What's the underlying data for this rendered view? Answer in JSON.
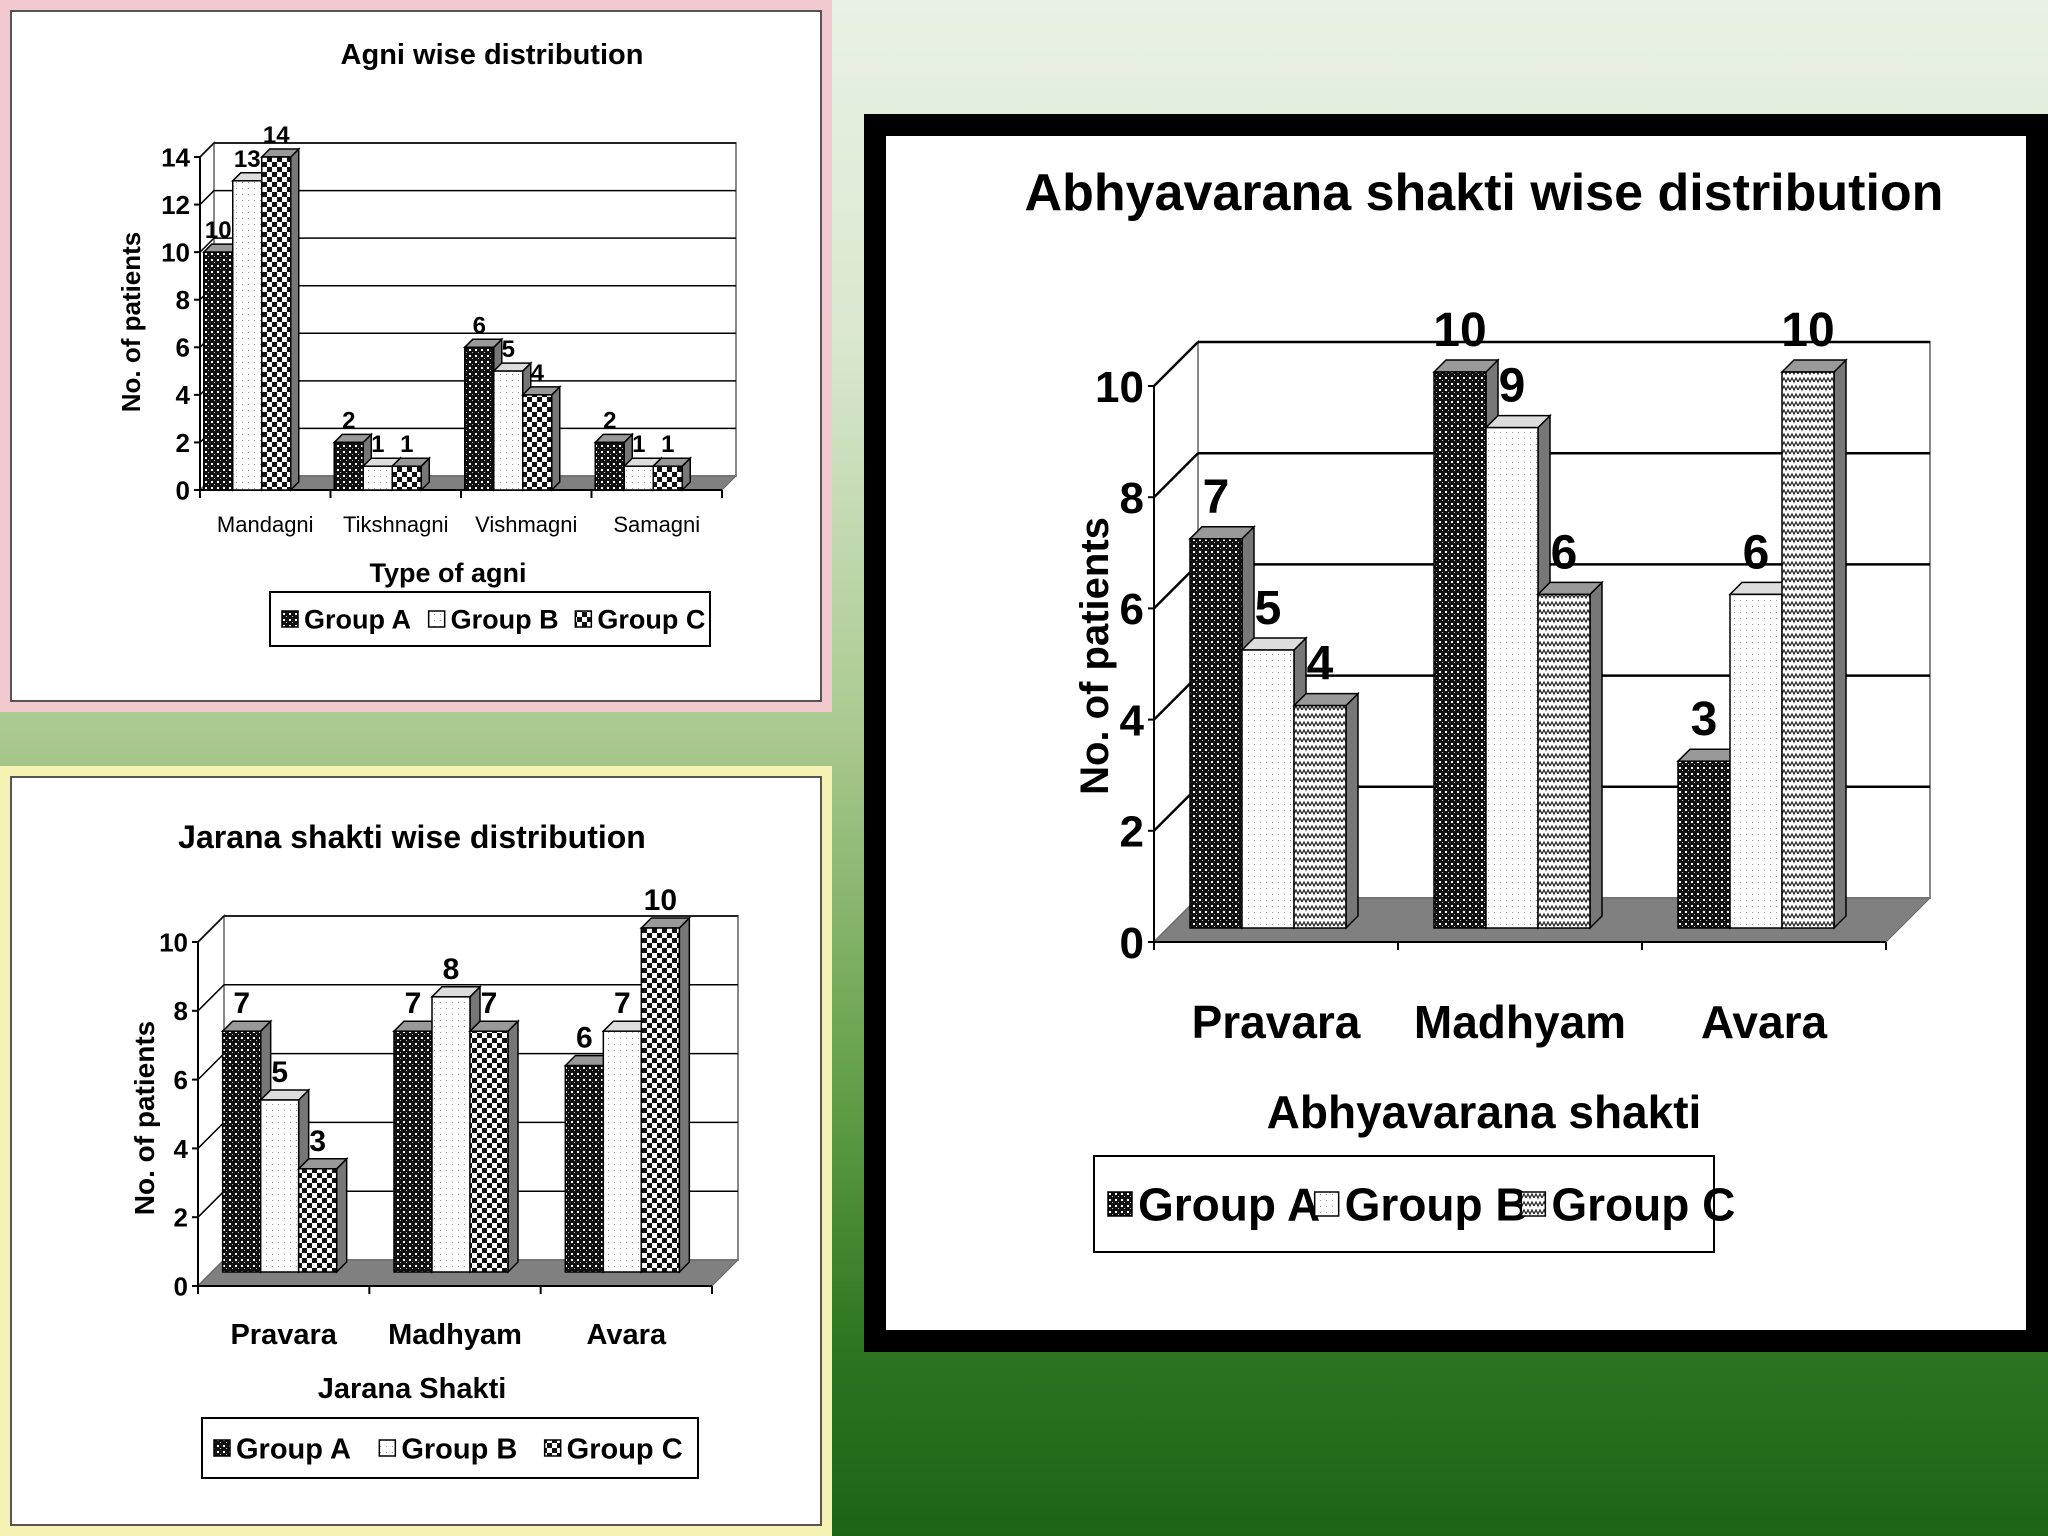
{
  "chart_data": [
    {
      "id": "agni",
      "type": "bar",
      "title": "Agni wise distribution",
      "xlabel": "Type of agni",
      "ylabel": "No. of patients",
      "categories": [
        "Mandagni",
        "Tikshnagni",
        "Vishmagni",
        "Samagni"
      ],
      "series": [
        {
          "name": "Group A",
          "values": [
            10,
            2,
            6,
            2
          ]
        },
        {
          "name": "Group B",
          "values": [
            13,
            1,
            5,
            1
          ]
        },
        {
          "name": "Group C",
          "values": [
            14,
            1,
            4,
            1
          ]
        }
      ],
      "ylim": [
        0,
        14
      ],
      "yticks": [
        0,
        2,
        4,
        6,
        8,
        10,
        12,
        14
      ],
      "legend": "bottom"
    },
    {
      "id": "jarana",
      "type": "bar",
      "title": "Jarana shakti wise distribution",
      "xlabel": "Jarana Shakti",
      "ylabel": "No. of patients",
      "categories": [
        "Pravara",
        "Madhyam",
        "Avara"
      ],
      "series": [
        {
          "name": "Group A",
          "values": [
            7,
            7,
            6
          ]
        },
        {
          "name": "Group B",
          "values": [
            5,
            8,
            7
          ]
        },
        {
          "name": "Group C",
          "values": [
            3,
            7,
            10
          ]
        }
      ],
      "ylim": [
        0,
        10
      ],
      "yticks": [
        0,
        2,
        4,
        6,
        8,
        10
      ],
      "legend": "bottom"
    },
    {
      "id": "abhyavarana",
      "type": "bar",
      "title": "Abhyavarana shakti wise distribution",
      "xlabel": "Abhyavarana shakti",
      "ylabel": "No. of patients",
      "categories": [
        "Pravara",
        "Madhyam",
        "Avara"
      ],
      "series": [
        {
          "name": "Group A",
          "values": [
            7,
            10,
            3
          ]
        },
        {
          "name": "Group B",
          "values": [
            5,
            9,
            6
          ]
        },
        {
          "name": "Group C",
          "values": [
            4,
            6,
            10
          ]
        }
      ],
      "ylim": [
        0,
        10
      ],
      "yticks": [
        0,
        2,
        4,
        6,
        8,
        10
      ],
      "legend": "bottom"
    }
  ]
}
